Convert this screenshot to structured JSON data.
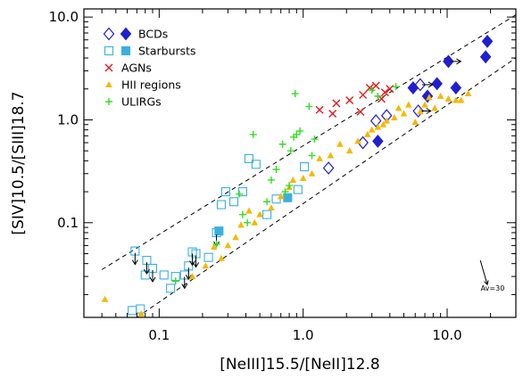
{
  "chart_data": {
    "type": "scatter",
    "xlabel": "[NeIII]15.5/[NeII]12.8",
    "ylabel": "[SIV]10.5/[SIII]18.7",
    "x_scale": "log",
    "y_scale": "log",
    "xlim": [
      0.03,
      30
    ],
    "ylim": [
      0.012,
      12
    ],
    "x_ticks": [
      {
        "value": 0.1,
        "label": "0.1"
      },
      {
        "value": 1.0,
        "label": "1.0"
      },
      {
        "value": 10.0,
        "label": "10.0"
      }
    ],
    "y_ticks": [
      {
        "value": 0.1,
        "label": "0.1"
      },
      {
        "value": 1.0,
        "label": "1.0"
      },
      {
        "value": 10.0,
        "label": "10.0"
      }
    ],
    "grid": false,
    "legend_position": "top-left",
    "legend": [
      {
        "label": "BCDs",
        "markers": [
          "diamond-open",
          "diamond-filled"
        ],
        "color": "#1f1fd0"
      },
      {
        "label": "Starbursts",
        "markers": [
          "square-open",
          "square-filled"
        ],
        "color": "#3ab0e0"
      },
      {
        "label": "AGNs",
        "markers": [
          "x"
        ],
        "color": "#e01a1a"
      },
      {
        "label": "HII regions",
        "markers": [
          "triangle-filled"
        ],
        "color": "#f5b800"
      },
      {
        "label": "ULIRGs",
        "markers": [
          "plus"
        ],
        "color": "#33dd22"
      }
    ],
    "dashed_lines": [
      {
        "points": [
          [
            0.04,
            0.035
          ],
          [
            30,
            10.5
          ]
        ]
      },
      {
        "points": [
          [
            0.07,
            0.012
          ],
          [
            30,
            4.0
          ]
        ]
      }
    ],
    "annotation": {
      "text": "Av=30",
      "arrow_from": [
        17,
        0.043
      ],
      "arrow_to": [
        19,
        0.025
      ]
    },
    "series": [
      {
        "name": "BCDs",
        "marker": "diamond",
        "color": "#1f1fd0",
        "open_points": [
          [
            1.5,
            0.34
          ],
          [
            2.6,
            0.6
          ],
          [
            3.2,
            0.98
          ],
          [
            3.8,
            1.1
          ],
          [
            6.3,
            1.22
          ],
          [
            6.5,
            2.2
          ]
        ],
        "filled_points": [
          [
            3.3,
            0.62
          ],
          [
            5.8,
            2.05
          ],
          [
            7.3,
            1.7
          ],
          [
            8.5,
            2.25
          ],
          [
            10.2,
            3.7
          ],
          [
            11.5,
            2.05
          ],
          [
            18.5,
            4.1
          ],
          [
            19,
            5.8
          ]
        ],
        "upper_limits": [],
        "lower_limits_x": [
          [
            6.3,
            1.22
          ],
          [
            6.5,
            2.2
          ],
          [
            10.2,
            3.7
          ]
        ]
      },
      {
        "name": "Starbursts",
        "marker": "square",
        "color": "#3ab0e0",
        "open_points": [
          [
            0.065,
            0.014
          ],
          [
            0.074,
            0.0145
          ],
          [
            0.068,
            0.053
          ],
          [
            0.082,
            0.043
          ],
          [
            0.08,
            0.031
          ],
          [
            0.09,
            0.036
          ],
          [
            0.108,
            0.031
          ],
          [
            0.12,
            0.023
          ],
          [
            0.13,
            0.03
          ],
          [
            0.15,
            0.031
          ],
          [
            0.16,
            0.038
          ],
          [
            0.17,
            0.052
          ],
          [
            0.18,
            0.05
          ],
          [
            0.22,
            0.046
          ],
          [
            0.25,
            0.08
          ],
          [
            0.27,
            0.15
          ],
          [
            0.29,
            0.2
          ],
          [
            0.33,
            0.16
          ],
          [
            0.38,
            0.2
          ],
          [
            0.42,
            0.42
          ],
          [
            0.47,
            0.37
          ],
          [
            0.56,
            0.12
          ],
          [
            0.65,
            0.17
          ],
          [
            0.92,
            0.21
          ],
          [
            1.02,
            0.35
          ]
        ],
        "filled_points": [
          [
            0.26,
            0.083
          ],
          [
            0.78,
            0.175
          ]
        ],
        "upper_limits": [
          [
            0.068,
            0.053
          ],
          [
            0.082,
            0.043
          ],
          [
            0.09,
            0.036
          ],
          [
            0.15,
            0.031
          ],
          [
            0.16,
            0.038
          ],
          [
            0.17,
            0.052
          ],
          [
            0.18,
            0.05
          ],
          [
            0.25,
            0.08
          ]
        ]
      },
      {
        "name": "AGNs",
        "marker": "x",
        "color": "#e01a1a",
        "points": [
          [
            1.3,
            1.25
          ],
          [
            1.6,
            1.15
          ],
          [
            1.7,
            1.45
          ],
          [
            2.1,
            1.55
          ],
          [
            2.5,
            1.2
          ],
          [
            2.6,
            1.75
          ],
          [
            2.9,
            2.05
          ],
          [
            3.2,
            2.15
          ],
          [
            3.5,
            1.6
          ],
          [
            3.7,
            1.85
          ],
          [
            4.0,
            2.0
          ]
        ]
      },
      {
        "name": "HII regions",
        "marker": "triangle",
        "color": "#f5b800",
        "points": [
          [
            0.042,
            0.018
          ],
          [
            0.075,
            0.013
          ],
          [
            0.17,
            0.03
          ],
          [
            0.21,
            0.038
          ],
          [
            0.24,
            0.058
          ],
          [
            0.27,
            0.045
          ],
          [
            0.3,
            0.06
          ],
          [
            0.34,
            0.072
          ],
          [
            0.37,
            0.095
          ],
          [
            0.42,
            0.13
          ],
          [
            0.46,
            0.1
          ],
          [
            0.5,
            0.12
          ],
          [
            0.6,
            0.14
          ],
          [
            0.7,
            0.18
          ],
          [
            0.8,
            0.22
          ],
          [
            0.85,
            0.26
          ],
          [
            1.0,
            0.27
          ],
          [
            1.15,
            0.3
          ],
          [
            1.3,
            0.42
          ],
          [
            1.55,
            0.45
          ],
          [
            1.8,
            0.58
          ],
          [
            2.1,
            0.5
          ],
          [
            2.4,
            0.62
          ],
          [
            2.8,
            0.72
          ],
          [
            3.0,
            0.8
          ],
          [
            3.3,
            0.85
          ],
          [
            3.6,
            0.9
          ],
          [
            3.8,
            0.98
          ],
          [
            4.3,
            1.05
          ],
          [
            4.6,
            1.3
          ],
          [
            5.0,
            1.15
          ],
          [
            5.4,
            1.4
          ],
          [
            6.0,
            0.95
          ],
          [
            6.5,
            1.2
          ],
          [
            7.0,
            1.4
          ],
          [
            7.5,
            1.65
          ],
          [
            8.2,
            1.3
          ],
          [
            9.0,
            1.7
          ],
          [
            10.2,
            1.6
          ],
          [
            11.5,
            1.55
          ],
          [
            12.5,
            1.55
          ],
          [
            14,
            1.8
          ]
        ]
      },
      {
        "name": "ULIRGs",
        "marker": "plus",
        "color": "#33dd22",
        "points": [
          [
            0.13,
            0.027
          ],
          [
            0.25,
            0.062
          ],
          [
            0.36,
            0.19
          ],
          [
            0.38,
            0.12
          ],
          [
            0.41,
            0.1
          ],
          [
            0.45,
            0.72
          ],
          [
            0.56,
            0.16
          ],
          [
            0.6,
            0.26
          ],
          [
            0.65,
            0.33
          ],
          [
            0.72,
            0.58
          ],
          [
            0.75,
            0.2
          ],
          [
            0.8,
            0.23
          ],
          [
            0.82,
            0.5
          ],
          [
            0.86,
            0.68
          ],
          [
            0.9,
            0.72
          ],
          [
            0.95,
            0.78
          ],
          [
            0.88,
            1.8
          ],
          [
            1.1,
            1.35
          ],
          [
            1.15,
            0.45
          ],
          [
            1.2,
            0.65
          ],
          [
            3.0,
            1.95
          ],
          [
            3.3,
            1.7
          ],
          [
            4.4,
            2.1
          ]
        ]
      }
    ]
  }
}
